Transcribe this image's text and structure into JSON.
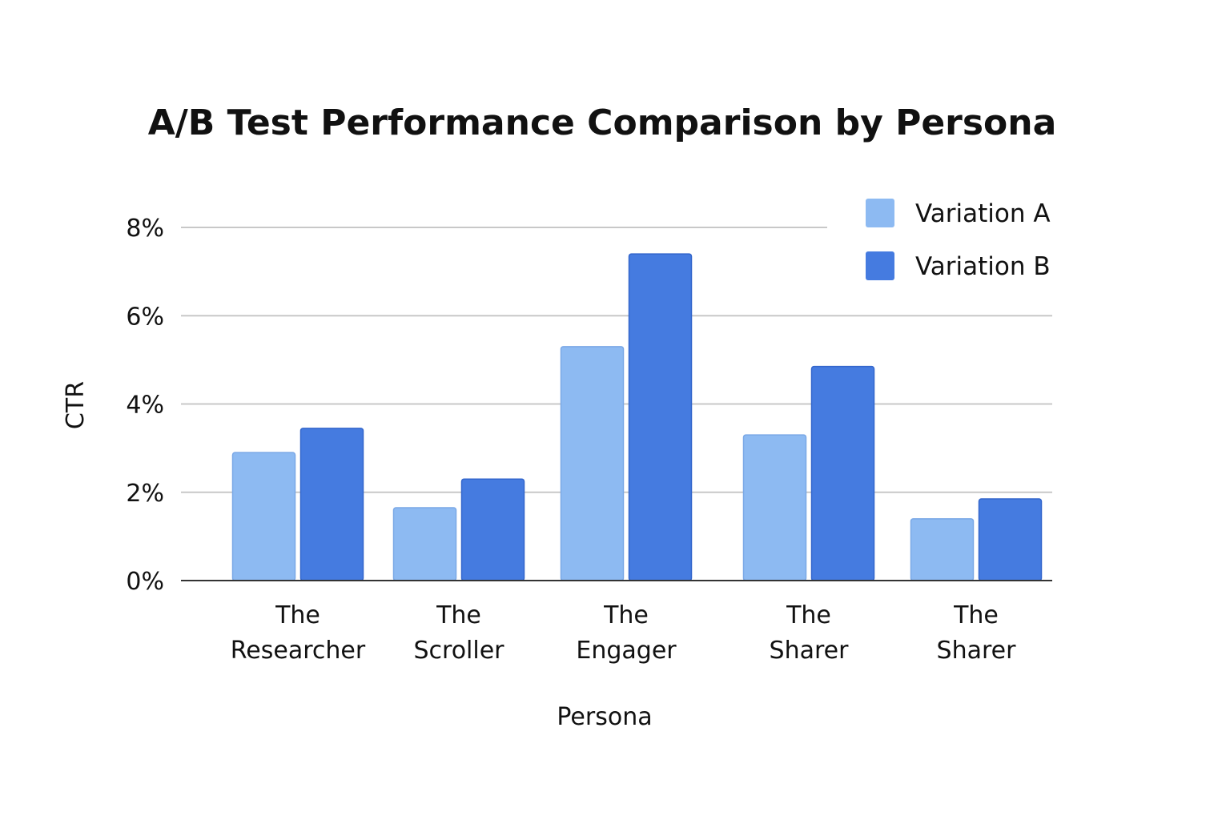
{
  "chart_data": {
    "type": "bar",
    "title": "A/B Test Performance Comparison by Persona",
    "xlabel": "Persona",
    "ylabel": "CTR",
    "categories": [
      [
        "The",
        "Researcher"
      ],
      [
        "The",
        "Scroller"
      ],
      [
        "The",
        "Engager"
      ],
      [
        "The",
        "Sharer"
      ],
      [
        "The",
        "Sharer"
      ]
    ],
    "series": [
      {
        "name": "Variation A",
        "color": "#8dbaf2",
        "values": [
          2.9,
          1.65,
          5.3,
          3.3,
          1.4
        ]
      },
      {
        "name": "Variation B",
        "color": "#457be0",
        "values": [
          3.45,
          2.3,
          7.4,
          4.85,
          1.85
        ]
      }
    ],
    "ylim": [
      0,
      8
    ],
    "yticks": [
      {
        "value": 0,
        "label": "0%"
      },
      {
        "value": 2,
        "label": "2%"
      },
      {
        "value": 4,
        "label": "4%"
      },
      {
        "value": 6,
        "label": "6%"
      },
      {
        "value": 8,
        "label": "8%"
      }
    ],
    "grid": true,
    "legend_position": "top-right"
  }
}
